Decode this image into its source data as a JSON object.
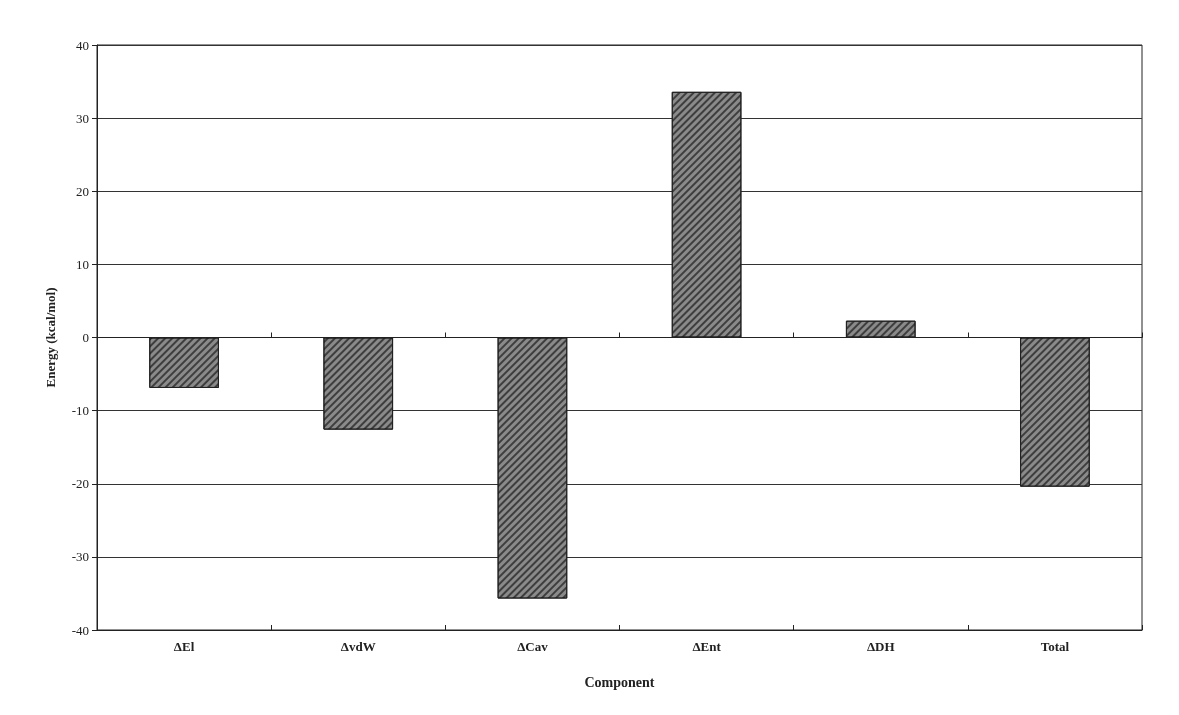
{
  "chart_data": {
    "type": "bar",
    "xlabel": "Component",
    "ylabel": "Energy (kcal/mol)",
    "categories": [
      "ΔEl",
      "ΔvdW",
      "ΔCav",
      "ΔEnt",
      "ΔDH",
      "Total"
    ],
    "values": [
      -6.9,
      -12.6,
      -35.7,
      33.6,
      2.3,
      -20.4
    ],
    "color": "#8a8a8a",
    "ylim": [
      -40,
      40
    ],
    "yticks": [
      -40,
      -30,
      -20,
      -10,
      0,
      10,
      20,
      30,
      40
    ],
    "grid": "y"
  }
}
